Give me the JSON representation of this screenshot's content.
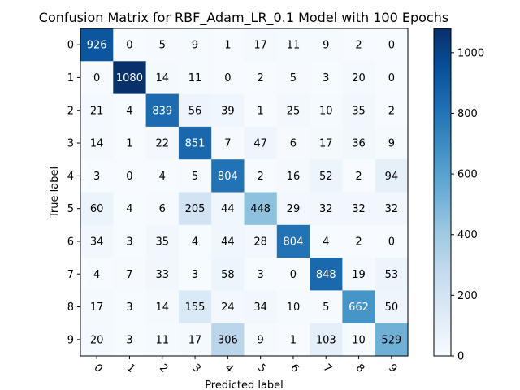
{
  "chart_data": {
    "type": "heatmap",
    "title": "Confusion Matrix for RBF_Adam_LR_0.1 Model with 100 Epochs",
    "xlabel": "Predicted label",
    "ylabel": "True label",
    "x_categories": [
      "0",
      "1",
      "2",
      "3",
      "4",
      "5",
      "6",
      "7",
      "8",
      "9"
    ],
    "y_categories": [
      "0",
      "1",
      "2",
      "3",
      "4",
      "5",
      "6",
      "7",
      "8",
      "9"
    ],
    "values": [
      [
        926,
        0,
        5,
        9,
        1,
        17,
        11,
        9,
        2,
        0
      ],
      [
        0,
        1080,
        14,
        11,
        0,
        2,
        5,
        3,
        20,
        0
      ],
      [
        21,
        4,
        839,
        56,
        39,
        1,
        25,
        10,
        35,
        2
      ],
      [
        14,
        1,
        22,
        851,
        7,
        47,
        6,
        17,
        36,
        9
      ],
      [
        3,
        0,
        4,
        5,
        804,
        2,
        16,
        52,
        2,
        94
      ],
      [
        60,
        4,
        6,
        205,
        44,
        448,
        29,
        32,
        32,
        32
      ],
      [
        34,
        3,
        35,
        4,
        44,
        28,
        804,
        4,
        2,
        0
      ],
      [
        4,
        7,
        33,
        3,
        58,
        3,
        0,
        848,
        19,
        53
      ],
      [
        17,
        3,
        14,
        155,
        24,
        34,
        10,
        5,
        662,
        50
      ],
      [
        20,
        3,
        11,
        17,
        306,
        9,
        1,
        103,
        10,
        529
      ]
    ],
    "colormap": "Blues",
    "vmin": 0,
    "vmax": 1080,
    "colorbar_ticks": [
      "0",
      "200",
      "400",
      "600",
      "800",
      "1000"
    ],
    "colorbar_tick_values": [
      0,
      200,
      400,
      600,
      800,
      1000
    ],
    "grid": false
  }
}
